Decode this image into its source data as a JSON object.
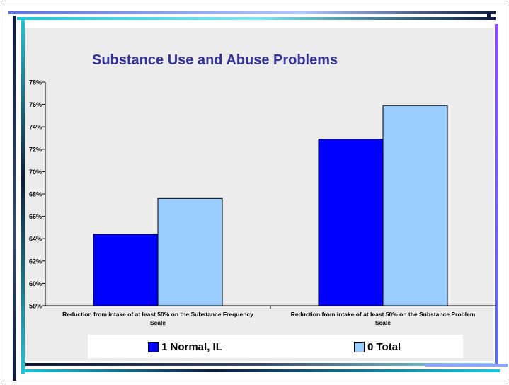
{
  "chart_data": {
    "type": "bar",
    "title": "Substance Use and Abuse Problems",
    "xlabel": "",
    "ylabel": "",
    "ylim": [
      58,
      78
    ],
    "ytick_step": 2,
    "ytick_labels": [
      "58%",
      "60%",
      "62%",
      "64%",
      "66%",
      "68%",
      "70%",
      "72%",
      "74%",
      "76%",
      "78%"
    ],
    "categories": [
      [
        "Reduction from intake of at least 50% on the Substance Frequency",
        "Scale"
      ],
      [
        "Reduction from intake of at least 50% on the Substance Problem",
        "Scale"
      ]
    ],
    "series": [
      {
        "name": "1 Normal, IL",
        "color": "#0000ff",
        "values": [
          64.4,
          72.9
        ]
      },
      {
        "name": "0 Total",
        "color": "#99ccff",
        "values": [
          67.6,
          75.9
        ]
      }
    ],
    "grid": false,
    "legend_position": "bottom"
  },
  "frame_colors": {
    "dark": "#0d1b3d",
    "teal": "#1fc6d8",
    "blue": "#5b6fe0",
    "purple": "#8a4fff"
  }
}
